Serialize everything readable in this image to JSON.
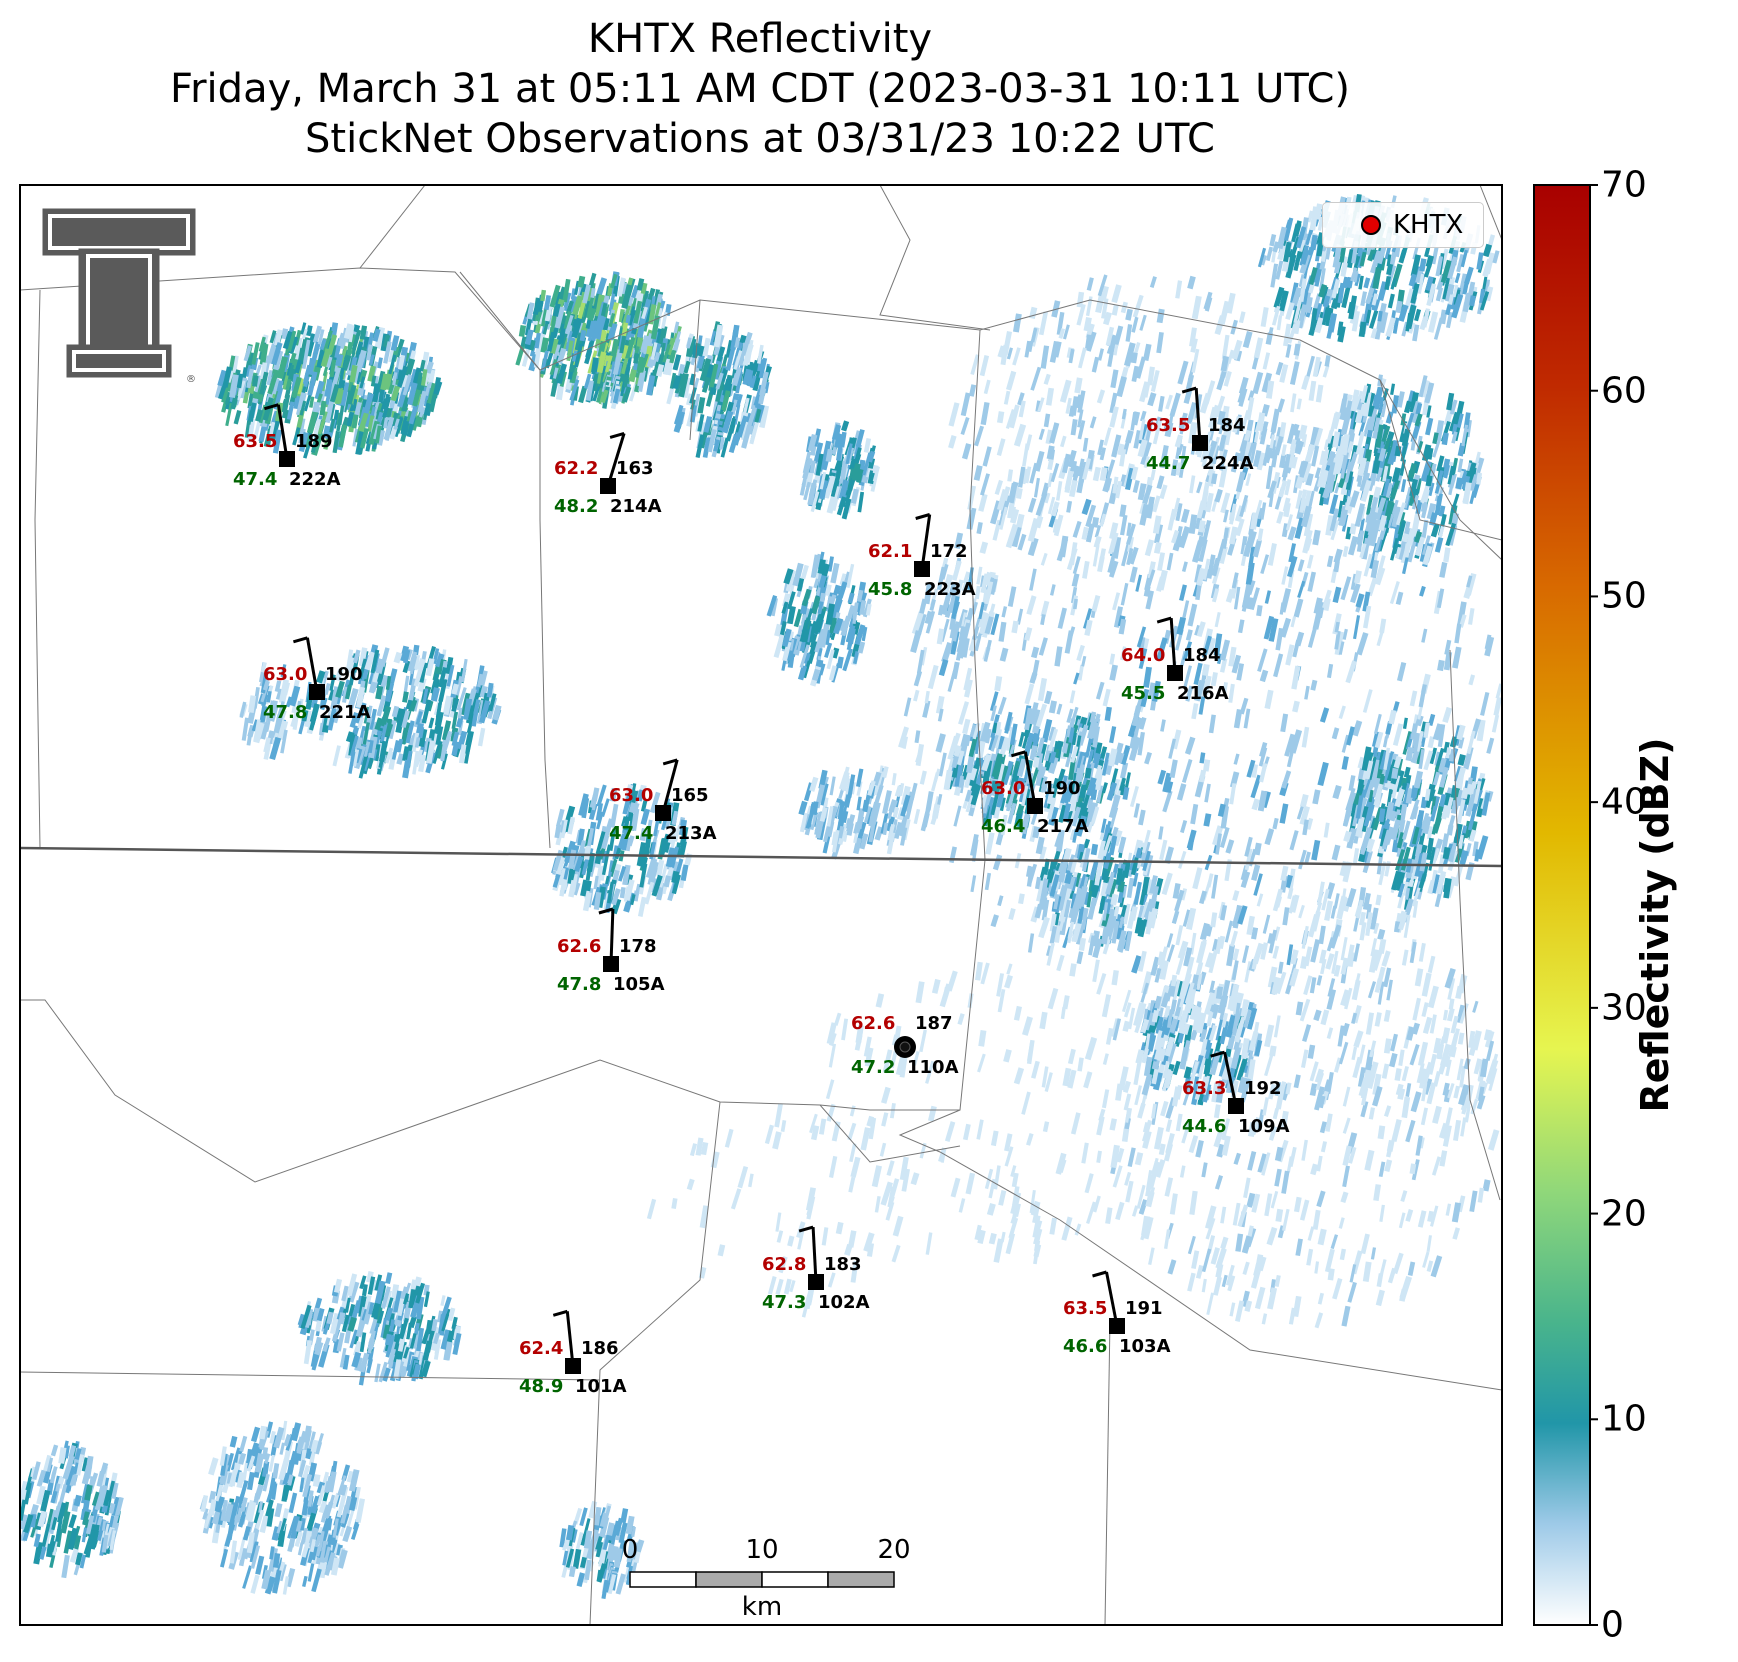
{
  "title": {
    "line1": "KHTX Reflectivity",
    "line2": "Friday, March 31 at 05:11 AM CDT (2023-03-31 10:11 UTC)",
    "line3": "StickNet Observations at 03/31/23 10:22 UTC"
  },
  "legend": {
    "label": "KHTX",
    "color": "#e00000"
  },
  "logo": {
    "name": "texas-tech-double-t-logo",
    "mark": "®"
  },
  "colorbar": {
    "label": "Reflectivity (dBZ)",
    "min": 0,
    "max": 70,
    "ticks": [
      "0",
      "10",
      "20",
      "30",
      "40",
      "50",
      "60",
      "70"
    ]
  },
  "scale_bar": {
    "ticks": [
      "0",
      "10",
      "20"
    ],
    "unit": "km"
  },
  "radar": {
    "id": "KHTX",
    "temp": "62.6",
    "dew": "47.2",
    "dir": "187",
    "id_label": "110A"
  },
  "stations": [
    {
      "id": "222A",
      "temp": "63.5",
      "dew": "47.4",
      "dir": "189"
    },
    {
      "id": "214A",
      "temp": "62.2",
      "dew": "48.2",
      "dir": "163"
    },
    {
      "id": "223A",
      "temp": "62.1",
      "dew": "45.8",
      "dir": "172"
    },
    {
      "id": "224A",
      "temp": "63.5",
      "dew": "44.7",
      "dir": "184"
    },
    {
      "id": "221A",
      "temp": "63.0",
      "dew": "47.8",
      "dir": "190"
    },
    {
      "id": "216A",
      "temp": "64.0",
      "dew": "45.5",
      "dir": "184"
    },
    {
      "id": "213A",
      "temp": "63.0",
      "dew": "47.4",
      "dir": "165"
    },
    {
      "id": "217A",
      "temp": "63.0",
      "dew": "46.4",
      "dir": "190"
    },
    {
      "id": "105A",
      "temp": "62.6",
      "dew": "47.8",
      "dir": "178"
    },
    {
      "id": "109A",
      "temp": "63.3",
      "dew": "44.6",
      "dir": "192"
    },
    {
      "id": "102A",
      "temp": "62.8",
      "dew": "47.3",
      "dir": "183"
    },
    {
      "id": "103A",
      "temp": "63.5",
      "dew": "46.6",
      "dir": "191"
    },
    {
      "id": "101A",
      "temp": "62.4",
      "dew": "48.9",
      "dir": "186"
    }
  ],
  "colors": {
    "temp": "#b30000",
    "dew": "#006400",
    "text": "#000000"
  }
}
